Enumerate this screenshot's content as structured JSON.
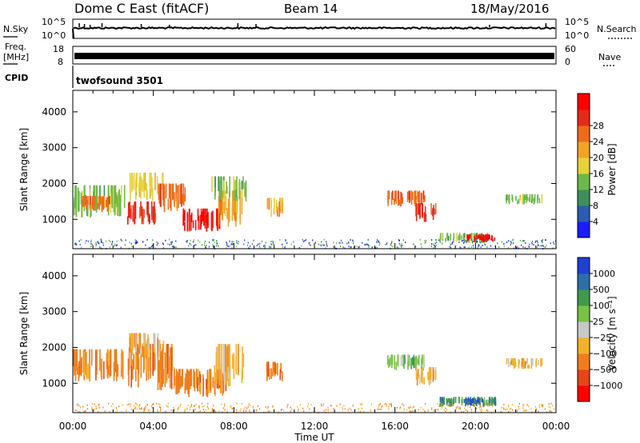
{
  "header": {
    "station": "Dome C East (fitACF)",
    "beam": "Beam 14",
    "date": "18/May/2016"
  },
  "aux": {
    "nsky": {
      "label": "N.Sky",
      "ticks": [
        "10^5",
        "10^0"
      ]
    },
    "nsearch": {
      "label": "N.Search",
      "ticks": [
        "10^5",
        "10^0"
      ]
    },
    "freq": {
      "label": "Freq.",
      "unit": "[MHz]",
      "ticks": [
        "18",
        "8"
      ]
    },
    "nave": {
      "label": "Nave",
      "ticks": [
        "60",
        "0"
      ]
    },
    "cpid": {
      "label": "CPID",
      "value": "twofsound 3501"
    }
  },
  "colors": {
    "power": [
      "#1c1cff",
      "#2c5cb0",
      "#3f8f5c",
      "#6db84a",
      "#e6d23a",
      "#f0a426",
      "#ee6b1b",
      "#e42a1a",
      "#ff0000"
    ],
    "velocity": [
      "#2040d0",
      "#2c6fa8",
      "#3f9a4c",
      "#78c246",
      "#c8c8c8",
      "#f4b12a",
      "#ef7d1c",
      "#e5451a",
      "#ff0000"
    ]
  },
  "chart_data": [
    {
      "type": "heatmap",
      "name": "power",
      "xlabel": "",
      "ylabel": "Slant Range [km]",
      "x_ticks": [
        "00:00",
        "04:00",
        "08:00",
        "12:00",
        "16:00",
        "20:00",
        "00:00"
      ],
      "xlim_hours": [
        0,
        24
      ],
      "y_ticks": [
        1000,
        2000,
        3000,
        4000
      ],
      "ylim_km": [
        180,
        4600
      ],
      "colorbar": {
        "label": "Power [dB]",
        "ticks": [
          4,
          8,
          12,
          16,
          20,
          24,
          28
        ],
        "range": [
          0,
          32
        ]
      },
      "echo_regions": [
        {
          "t0": 0.0,
          "t1": 2.6,
          "r0": 1050,
          "r1": 1950,
          "v": 12
        },
        {
          "t0": 0.3,
          "t1": 1.8,
          "r0": 1200,
          "r1": 1650,
          "v": 22
        },
        {
          "t0": 2.7,
          "t1": 4.2,
          "r0": 850,
          "r1": 1500,
          "v": 27
        },
        {
          "t0": 2.8,
          "t1": 4.5,
          "r0": 1500,
          "r1": 2300,
          "v": 16
        },
        {
          "t0": 4.2,
          "t1": 5.6,
          "r0": 1200,
          "r1": 2000,
          "v": 24
        },
        {
          "t0": 5.4,
          "t1": 7.3,
          "r0": 650,
          "r1": 1300,
          "v": 29
        },
        {
          "t0": 7.2,
          "t1": 8.4,
          "r0": 750,
          "r1": 1800,
          "v": 20
        },
        {
          "t0": 6.8,
          "t1": 8.6,
          "r0": 1500,
          "r1": 2200,
          "v": 12
        },
        {
          "t0": 9.6,
          "t1": 10.4,
          "r0": 1050,
          "r1": 1600,
          "v": 20
        },
        {
          "t0": 15.6,
          "t1": 17.5,
          "r0": 1350,
          "r1": 1800,
          "v": 24
        },
        {
          "t0": 17.0,
          "t1": 18.0,
          "r0": 900,
          "r1": 1450,
          "v": 27
        },
        {
          "t0": 18.2,
          "t1": 20.6,
          "r0": 330,
          "r1": 620,
          "v": 14
        },
        {
          "t0": 19.4,
          "t1": 21.0,
          "r0": 360,
          "r1": 580,
          "v": 29
        },
        {
          "t0": 21.5,
          "t1": 23.3,
          "r0": 1400,
          "r1": 1700,
          "v": 14
        }
      ]
    },
    {
      "type": "heatmap",
      "name": "velocity",
      "xlabel": "Time UT",
      "ylabel": "Slant Range [km]",
      "x_ticks": [
        "00:00",
        "04:00",
        "08:00",
        "12:00",
        "16:00",
        "20:00",
        "00:00"
      ],
      "xlim_hours": [
        0,
        24
      ],
      "y_ticks": [
        1000,
        2000,
        3000,
        4000
      ],
      "ylim_km": [
        180,
        4600
      ],
      "colorbar": {
        "label": "Velocity [m s⁻¹]",
        "ticks": [
          "1000",
          "500",
          "100",
          "25",
          "−25",
          "−100",
          "−500",
          "−1000"
        ]
      },
      "echo_regions": [
        {
          "t0": 0.0,
          "t1": 2.6,
          "r0": 1050,
          "r1": 1950,
          "c": 6
        },
        {
          "t0": 2.7,
          "t1": 5.0,
          "r0": 800,
          "r1": 2100,
          "c": 6
        },
        {
          "t0": 2.8,
          "t1": 4.5,
          "r0": 1700,
          "r1": 2400,
          "c": 5
        },
        {
          "t0": 5.0,
          "t1": 7.6,
          "r0": 600,
          "r1": 1400,
          "c": 6
        },
        {
          "t0": 7.0,
          "t1": 8.5,
          "r0": 900,
          "r1": 2100,
          "c": 5
        },
        {
          "t0": 9.6,
          "t1": 10.4,
          "r0": 1050,
          "r1": 1600,
          "c": 6
        },
        {
          "t0": 15.6,
          "t1": 17.5,
          "r0": 1350,
          "r1": 1800,
          "c": 3
        },
        {
          "t0": 17.0,
          "t1": 18.0,
          "r0": 900,
          "r1": 1450,
          "c": 5
        },
        {
          "t0": 18.2,
          "t1": 21.0,
          "r0": 330,
          "r1": 620,
          "c": 2
        },
        {
          "t0": 19.4,
          "t1": 21.0,
          "r0": 360,
          "r1": 580,
          "c": 1
        },
        {
          "t0": 21.5,
          "t1": 23.3,
          "r0": 1400,
          "r1": 1700,
          "c": 5
        }
      ]
    }
  ]
}
